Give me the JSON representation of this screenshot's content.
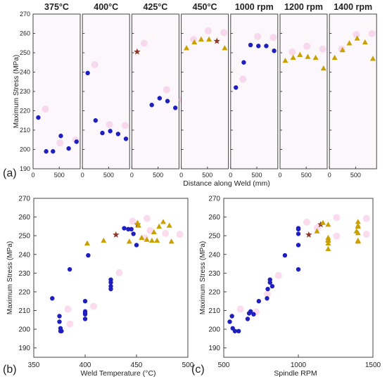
{
  "colors": {
    "circle": "#1f1fbf",
    "triangle": "#c8a000",
    "star": "#8b3a2a",
    "ghost": "#f5c0e0",
    "panel_bg": "#fbf7fb",
    "axis": "#444444"
  },
  "chart_data": [
    {
      "type": "scatter",
      "panel_label": "(a)",
      "ylabel": "Maximum Stress (MPa)",
      "xlabel": "Distance along Weld (mm)",
      "ylim": [
        190,
        270
      ],
      "yticks": [
        190,
        200,
        210,
        220,
        230,
        240,
        250,
        260,
        270
      ],
      "xlim": [
        0,
        900
      ],
      "xticks": [
        0,
        500
      ],
      "subplots": [
        {
          "title": "375°C",
          "points": [
            {
              "x": 100,
              "y": 216.5,
              "marker": "circle"
            },
            {
              "x": 250,
              "y": 199,
              "marker": "circle"
            },
            {
              "x": 380,
              "y": 199,
              "marker": "circle"
            },
            {
              "x": 530,
              "y": 207,
              "marker": "circle"
            },
            {
              "x": 680,
              "y": 200.5,
              "marker": "circle"
            },
            {
              "x": 830,
              "y": 204,
              "marker": "circle"
            }
          ]
        },
        {
          "title": "400°C",
          "points": [
            {
              "x": 100,
              "y": 239.5,
              "marker": "circle"
            },
            {
              "x": 250,
              "y": 215,
              "marker": "circle"
            },
            {
              "x": 380,
              "y": 208.5,
              "marker": "circle"
            },
            {
              "x": 530,
              "y": 209.5,
              "marker": "circle"
            },
            {
              "x": 680,
              "y": 208,
              "marker": "circle"
            },
            {
              "x": 830,
              "y": 205.5,
              "marker": "circle"
            }
          ]
        },
        {
          "title": "425°C",
          "points": [
            {
              "x": 100,
              "y": 250.5,
              "marker": "star"
            },
            {
              "x": 380,
              "y": 223,
              "marker": "circle"
            },
            {
              "x": 530,
              "y": 226.5,
              "marker": "circle"
            },
            {
              "x": 680,
              "y": 225,
              "marker": "circle"
            },
            {
              "x": 830,
              "y": 221.5,
              "marker": "circle"
            }
          ]
        },
        {
          "title": "450°C",
          "points": [
            {
              "x": 100,
              "y": 252.5,
              "marker": "triangle"
            },
            {
              "x": 250,
              "y": 255.5,
              "marker": "triangle"
            },
            {
              "x": 380,
              "y": 257,
              "marker": "triangle"
            },
            {
              "x": 530,
              "y": 257,
              "marker": "triangle"
            },
            {
              "x": 680,
              "y": 256,
              "marker": "star"
            },
            {
              "x": 830,
              "y": 252.5,
              "marker": "triangle"
            }
          ]
        },
        {
          "title": "1000 rpm",
          "points": [
            {
              "x": 100,
              "y": 232,
              "marker": "circle"
            },
            {
              "x": 250,
              "y": 245,
              "marker": "circle"
            },
            {
              "x": 380,
              "y": 254,
              "marker": "circle"
            },
            {
              "x": 530,
              "y": 253.5,
              "marker": "circle"
            },
            {
              "x": 680,
              "y": 253.5,
              "marker": "circle"
            },
            {
              "x": 830,
              "y": 251,
              "marker": "circle"
            }
          ]
        },
        {
          "title": "1200 rpm",
          "points": [
            {
              "x": 100,
              "y": 246,
              "marker": "triangle"
            },
            {
              "x": 250,
              "y": 247.5,
              "marker": "triangle"
            },
            {
              "x": 380,
              "y": 249,
              "marker": "triangle"
            },
            {
              "x": 530,
              "y": 248,
              "marker": "triangle"
            },
            {
              "x": 680,
              "y": 247.5,
              "marker": "triangle"
            },
            {
              "x": 830,
              "y": 242,
              "marker": "triangle"
            }
          ]
        },
        {
          "title": "1400 rpm",
          "points": [
            {
              "x": 100,
              "y": 247.5,
              "marker": "triangle"
            },
            {
              "x": 250,
              "y": 251.5,
              "marker": "triangle"
            },
            {
              "x": 380,
              "y": 255,
              "marker": "triangle"
            },
            {
              "x": 530,
              "y": 257.5,
              "marker": "triangle"
            },
            {
              "x": 680,
              "y": 255.5,
              "marker": "triangle"
            },
            {
              "x": 830,
              "y": 247,
              "marker": "triangle"
            }
          ]
        }
      ]
    },
    {
      "type": "scatter",
      "panel_label": "(b)",
      "ylabel": "Maximum Stress (MPa)",
      "xlabel": "Weld Temperature (°C)",
      "xlim": [
        350,
        500
      ],
      "ylim": [
        185,
        270
      ],
      "xticks": [
        350,
        400,
        450,
        500
      ],
      "yticks": [
        190,
        200,
        210,
        220,
        230,
        240,
        250,
        260,
        270
      ],
      "points": [
        {
          "x": 368,
          "y": 216.5,
          "marker": "circle"
        },
        {
          "x": 375,
          "y": 207,
          "marker": "circle"
        },
        {
          "x": 375,
          "y": 204,
          "marker": "circle"
        },
        {
          "x": 376,
          "y": 200.5,
          "marker": "circle"
        },
        {
          "x": 376,
          "y": 199,
          "marker": "circle"
        },
        {
          "x": 377,
          "y": 199,
          "marker": "circle"
        },
        {
          "x": 385,
          "y": 232,
          "marker": "circle"
        },
        {
          "x": 400,
          "y": 215,
          "marker": "circle"
        },
        {
          "x": 400,
          "y": 209.5,
          "marker": "circle"
        },
        {
          "x": 400,
          "y": 208.5,
          "marker": "circle"
        },
        {
          "x": 400,
          "y": 208,
          "marker": "circle"
        },
        {
          "x": 400,
          "y": 205.5,
          "marker": "circle"
        },
        {
          "x": 403,
          "y": 239.5,
          "marker": "circle"
        },
        {
          "x": 425,
          "y": 226.5,
          "marker": "circle"
        },
        {
          "x": 425,
          "y": 225,
          "marker": "circle"
        },
        {
          "x": 425,
          "y": 223,
          "marker": "circle"
        },
        {
          "x": 425,
          "y": 221.5,
          "marker": "circle"
        },
        {
          "x": 438,
          "y": 254,
          "marker": "circle"
        },
        {
          "x": 442,
          "y": 253.5,
          "marker": "circle"
        },
        {
          "x": 445,
          "y": 253.5,
          "marker": "circle"
        },
        {
          "x": 447,
          "y": 251,
          "marker": "circle"
        },
        {
          "x": 450,
          "y": 245,
          "marker": "circle"
        },
        {
          "x": 430,
          "y": 250.5,
          "marker": "star"
        },
        {
          "x": 451,
          "y": 256,
          "marker": "star"
        },
        {
          "x": 451,
          "y": 257,
          "marker": "triangle"
        },
        {
          "x": 452,
          "y": 255.5,
          "marker": "triangle"
        },
        {
          "x": 402,
          "y": 246,
          "marker": "triangle"
        },
        {
          "x": 418,
          "y": 247.5,
          "marker": "triangle"
        },
        {
          "x": 443,
          "y": 247,
          "marker": "triangle"
        },
        {
          "x": 455,
          "y": 249,
          "marker": "triangle"
        },
        {
          "x": 460,
          "y": 248,
          "marker": "triangle"
        },
        {
          "x": 465,
          "y": 247.5,
          "marker": "triangle"
        },
        {
          "x": 467,
          "y": 252,
          "marker": "triangle"
        },
        {
          "x": 470,
          "y": 247.5,
          "marker": "triangle"
        },
        {
          "x": 472,
          "y": 255,
          "marker": "triangle"
        },
        {
          "x": 476,
          "y": 257.5,
          "marker": "triangle"
        },
        {
          "x": 482,
          "y": 255.5,
          "marker": "triangle"
        },
        {
          "x": 484,
          "y": 247,
          "marker": "triangle"
        }
      ]
    },
    {
      "type": "scatter",
      "panel_label": "(c)",
      "ylabel": "Maximum Stress (MPa)",
      "xlabel": "Spindle RPM",
      "xlim": [
        500,
        1500
      ],
      "ylim": [
        185,
        270
      ],
      "xticks": [
        500,
        1000,
        1500
      ],
      "yticks": [
        190,
        200,
        210,
        220,
        230,
        240,
        250,
        260,
        270
      ],
      "points": [
        {
          "x": 540,
          "y": 204,
          "marker": "circle"
        },
        {
          "x": 555,
          "y": 207,
          "marker": "circle"
        },
        {
          "x": 560,
          "y": 200.5,
          "marker": "circle"
        },
        {
          "x": 575,
          "y": 199,
          "marker": "circle"
        },
        {
          "x": 600,
          "y": 199,
          "marker": "circle"
        },
        {
          "x": 660,
          "y": 205.5,
          "marker": "circle"
        },
        {
          "x": 670,
          "y": 208.5,
          "marker": "circle"
        },
        {
          "x": 680,
          "y": 209.5,
          "marker": "circle"
        },
        {
          "x": 700,
          "y": 208,
          "marker": "circle"
        },
        {
          "x": 735,
          "y": 215,
          "marker": "circle"
        },
        {
          "x": 790,
          "y": 216.5,
          "marker": "circle"
        },
        {
          "x": 795,
          "y": 221.5,
          "marker": "circle"
        },
        {
          "x": 810,
          "y": 226.5,
          "marker": "circle"
        },
        {
          "x": 810,
          "y": 225,
          "marker": "circle"
        },
        {
          "x": 825,
          "y": 223,
          "marker": "circle"
        },
        {
          "x": 910,
          "y": 239.5,
          "marker": "circle"
        },
        {
          "x": 1000,
          "y": 254,
          "marker": "circle"
        },
        {
          "x": 1000,
          "y": 253.5,
          "marker": "circle"
        },
        {
          "x": 1000,
          "y": 251,
          "marker": "circle"
        },
        {
          "x": 1000,
          "y": 245,
          "marker": "circle"
        },
        {
          "x": 1000,
          "y": 232,
          "marker": "circle"
        },
        {
          "x": 1070,
          "y": 250.5,
          "marker": "star"
        },
        {
          "x": 1150,
          "y": 256,
          "marker": "star"
        },
        {
          "x": 1125,
          "y": 252.5,
          "marker": "triangle"
        },
        {
          "x": 1165,
          "y": 257,
          "marker": "triangle"
        },
        {
          "x": 1200,
          "y": 256,
          "marker": "triangle"
        },
        {
          "x": 1200,
          "y": 249,
          "marker": "triangle"
        },
        {
          "x": 1200,
          "y": 248,
          "marker": "triangle"
        },
        {
          "x": 1200,
          "y": 247.5,
          "marker": "triangle"
        },
        {
          "x": 1200,
          "y": 246,
          "marker": "triangle"
        },
        {
          "x": 1200,
          "y": 243,
          "marker": "triangle"
        },
        {
          "x": 1390,
          "y": 252.5,
          "marker": "triangle"
        },
        {
          "x": 1400,
          "y": 257.5,
          "marker": "triangle"
        },
        {
          "x": 1400,
          "y": 255.5,
          "marker": "triangle"
        },
        {
          "x": 1400,
          "y": 255,
          "marker": "triangle"
        },
        {
          "x": 1400,
          "y": 251.5,
          "marker": "triangle"
        },
        {
          "x": 1400,
          "y": 247.5,
          "marker": "triangle"
        },
        {
          "x": 1400,
          "y": 247,
          "marker": "triangle"
        }
      ]
    }
  ]
}
